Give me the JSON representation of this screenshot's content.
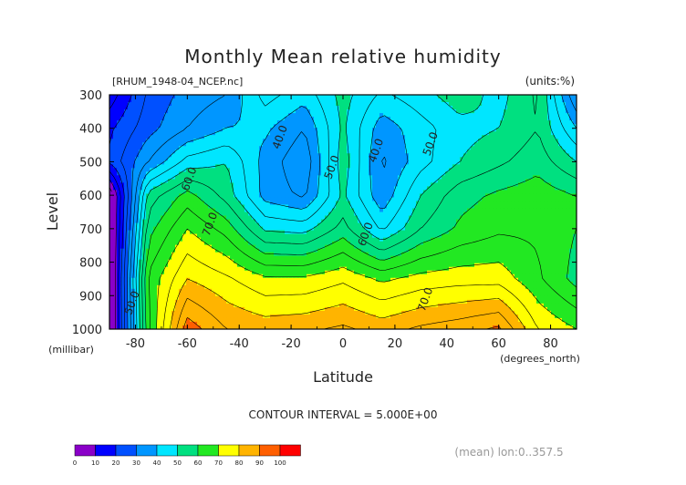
{
  "chart_data": {
    "type": "heatmap",
    "title": "Monthly Mean relative humidity",
    "file_label": "[RHUM_1948-04_NCEP.nc]",
    "units_label": "(units:%)",
    "xlabel": "Latitude",
    "ylabel": "Level",
    "x_unit": "(degrees_north)",
    "y_unit": "(millibar)",
    "xlim": [
      -90,
      90
    ],
    "ylim": [
      1000,
      300
    ],
    "x_ticks": [
      -80,
      -60,
      -40,
      -20,
      0,
      20,
      40,
      60,
      80
    ],
    "x_tick_labels": [
      "-80",
      "-60",
      "-40",
      "-20",
      "0",
      "20",
      "40",
      "60",
      "80"
    ],
    "y_ticks": [
      300,
      400,
      500,
      600,
      700,
      800,
      900,
      1000
    ],
    "y_tick_labels": [
      "300",
      "400",
      "500",
      "600",
      "700",
      "800",
      "900",
      "1000"
    ],
    "contour_interval_text": "CONTOUR INTERVAL = 5.000E+00",
    "mean_note": "(mean) lon:0..357.5",
    "contour_labels": [
      {
        "text": "40.0",
        "lat": -23,
        "level": 430
      },
      {
        "text": "40.0",
        "lat": 14,
        "level": 470
      },
      {
        "text": "50.0",
        "lat": 35,
        "level": 450
      },
      {
        "text": "50.0",
        "lat": -3,
        "level": 520
      },
      {
        "text": "60.0",
        "lat": -58,
        "level": 555
      },
      {
        "text": "70.0",
        "lat": -50,
        "level": 690
      },
      {
        "text": "60.0",
        "lat": 10,
        "level": 720
      },
      {
        "text": "70.0",
        "lat": 33,
        "level": 915
      },
      {
        "text": "50.0",
        "lat": -80,
        "level": 925
      }
    ],
    "colorbar": {
      "labels": [
        "0",
        "10",
        "20",
        "30",
        "40",
        "50",
        "60",
        "70",
        "80",
        "90",
        "100"
      ],
      "colors": [
        "#8a00c8",
        "#0000ff",
        "#0050ff",
        "#0096ff",
        "#00e6ff",
        "#00e080",
        "#22e822",
        "#ffff00",
        "#ffb400",
        "#ff5f00",
        "#ff0000"
      ]
    },
    "lat": [
      -90,
      -75,
      -60,
      -45,
      -30,
      -15,
      0,
      15,
      30,
      45,
      60,
      75,
      90
    ],
    "levels": [
      300,
      400,
      500,
      600,
      700,
      850,
      1000
    ],
    "rh": [
      [
        12,
        26,
        32,
        35,
        47,
        42,
        52,
        44,
        48,
        53,
        48,
        56,
        30
      ],
      [
        19,
        28,
        35,
        40,
        41,
        35,
        51,
        37,
        43,
        48,
        50,
        55,
        40
      ],
      [
        21,
        35,
        47,
        50,
        38,
        31,
        53,
        34,
        43,
        50,
        54,
        58,
        50
      ],
      [
        0,
        52,
        62,
        53,
        38,
        34,
        51,
        36,
        50,
        58,
        61,
        63,
        60
      ],
      [
        0,
        58,
        70,
        63,
        49,
        48,
        57,
        44,
        55,
        61,
        64,
        64,
        60
      ],
      [
        0,
        66,
        80,
        76,
        71,
        71,
        74,
        69,
        72,
        73,
        73,
        66,
        58
      ],
      [
        0,
        64,
        93,
        85,
        83,
        84,
        86,
        83,
        86,
        88,
        91,
        75,
        70
      ]
    ]
  }
}
